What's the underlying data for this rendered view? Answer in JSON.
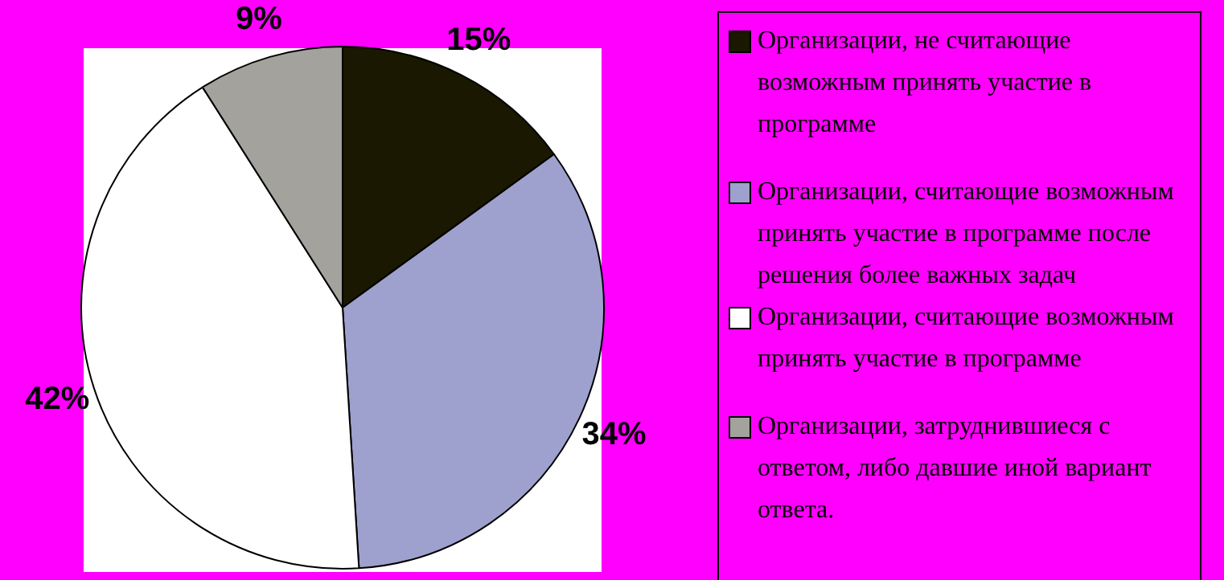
{
  "chart_data": {
    "type": "pie",
    "categories": [
      "Организации, не считающие возможным принять участие в программе",
      "Организации, считающие возможным принять участие в программе после решения более важных задач",
      "Организации, считающие возможным принять участие в программе",
      "Организации, затруднившиеся с ответом, либо давшие иной вариант ответа."
    ],
    "values": [
      15,
      34,
      42,
      9
    ],
    "value_labels": [
      "15%",
      "34%",
      "42%",
      "9%"
    ],
    "colors": [
      "#1a1800",
      "#9ea0cd",
      "#ffffff",
      "#a3a29c"
    ],
    "legend": "right"
  }
}
